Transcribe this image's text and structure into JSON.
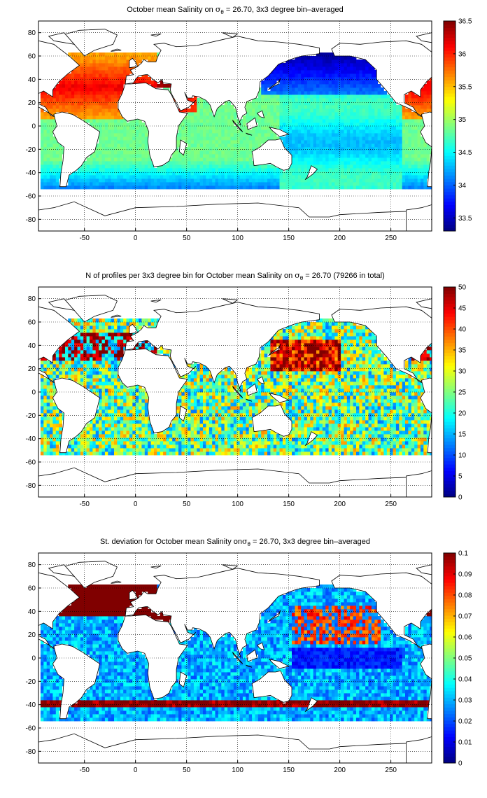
{
  "chart_data": [
    {
      "type": "heatmap",
      "title": "October mean Salinity on σθ = 26.70, 3x3 degree bin–averaged",
      "title_parts": {
        "before": "October mean Salinity on ",
        "sigma": "σ",
        "sub": "θ",
        "after": " = 26.70, 3x3 degree bin–averaged"
      },
      "xlim": [
        -95,
        290
      ],
      "ylim": [
        -90,
        90
      ],
      "xticks": [
        -50,
        0,
        50,
        100,
        150,
        200,
        250
      ],
      "yticks": [
        -80,
        -60,
        -40,
        -20,
        0,
        20,
        40,
        60,
        80
      ],
      "colorbar": {
        "min": 33.3,
        "max": 36.5,
        "ticks": [
          33.5,
          34,
          34.5,
          35,
          35.5,
          36,
          36.5
        ]
      },
      "colormap": "jet",
      "field": "mean_salinity",
      "grid": true
    },
    {
      "type": "heatmap",
      "title": "N of profiles per 3x3 degree bin for October mean Salinity on σθ = 26.70 (79266 in total)",
      "title_parts": {
        "before": "N of profiles per 3x3 degree bin for October mean Salinity on ",
        "sigma": "σ",
        "sub": "θ",
        "after": " = 26.70 (79266 in total)"
      },
      "xlim": [
        -95,
        290
      ],
      "ylim": [
        -90,
        90
      ],
      "xticks": [
        -50,
        0,
        50,
        100,
        150,
        200,
        250
      ],
      "yticks": [
        -80,
        -60,
        -40,
        -20,
        0,
        20,
        40,
        60,
        80
      ],
      "colorbar": {
        "min": 0,
        "max": 50,
        "ticks": [
          0,
          5,
          10,
          15,
          20,
          25,
          30,
          35,
          40,
          45,
          50
        ]
      },
      "colormap": "jet",
      "field": "profile_count",
      "total_profiles": 79266,
      "grid": true
    },
    {
      "type": "heatmap",
      "title": "St. deviation for October mean Salinity on σθ = 26.70, 3x3 degree bin–averaged",
      "title_parts": {
        "before": "St. deviation for October mean Salinity on",
        "sigma": "σ",
        "sub": "θ",
        "after": " = 26.70, 3x3 degree bin–averaged"
      },
      "xlim": [
        -95,
        290
      ],
      "ylim": [
        -90,
        90
      ],
      "xticks": [
        -50,
        0,
        50,
        100,
        150,
        200,
        250
      ],
      "yticks": [
        -80,
        -60,
        -40,
        -20,
        0,
        20,
        40,
        60,
        80
      ],
      "colorbar": {
        "min": 0,
        "max": 0.1,
        "ticks": [
          0,
          0.01,
          0.02,
          0.03,
          0.04,
          0.05,
          0.06,
          0.07,
          0.08,
          0.09,
          0.1
        ]
      },
      "colormap": "jet",
      "field": "salinity_std",
      "grid": true
    }
  ]
}
